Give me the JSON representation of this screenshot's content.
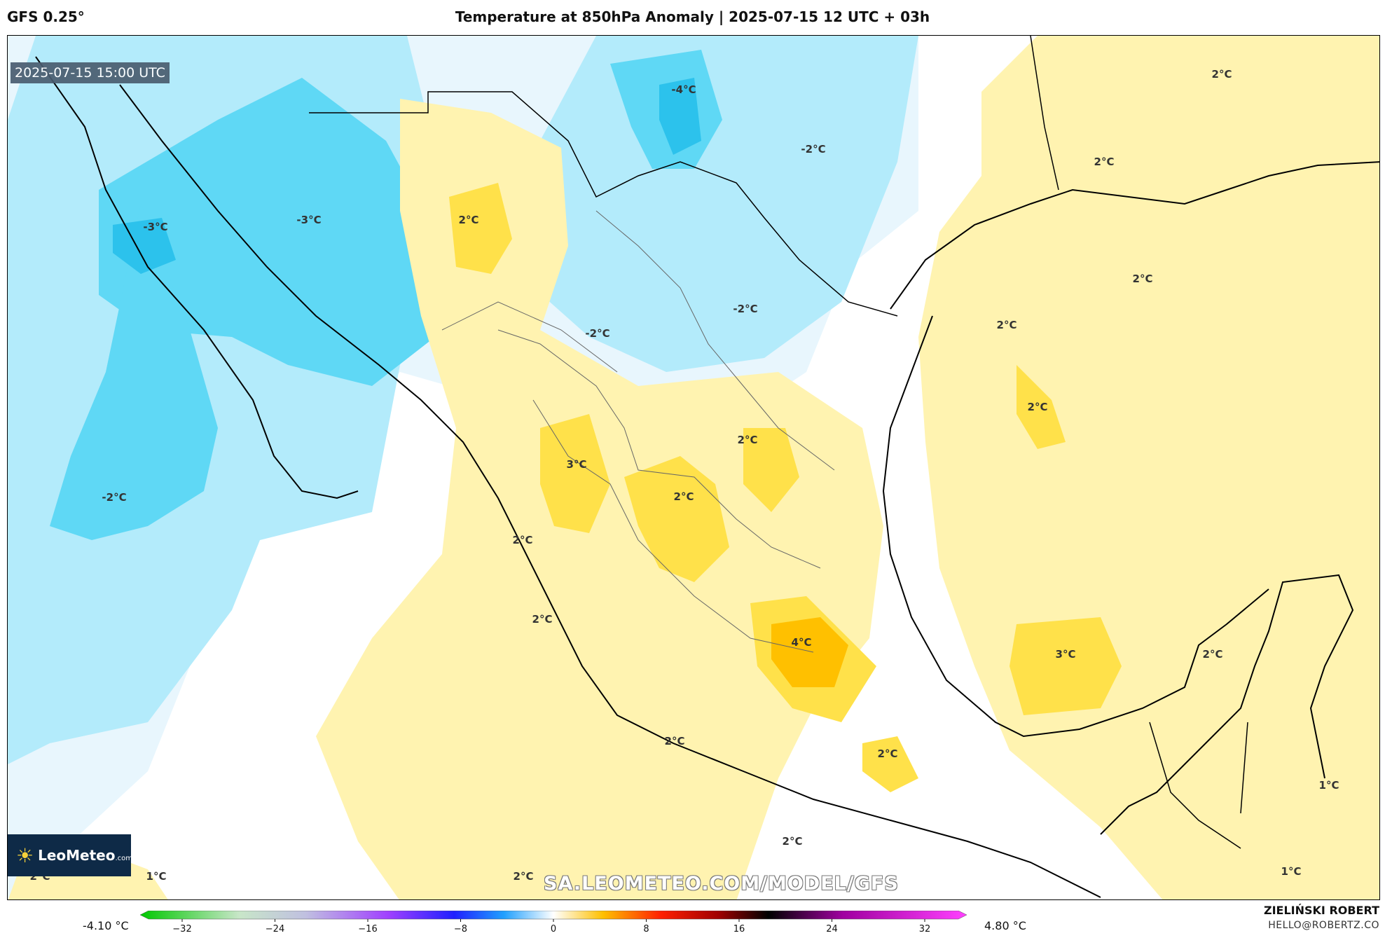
{
  "header": {
    "model": "GFS 0.25°",
    "title": "Temperature at 850hPa Anomaly | 2025-07-15 12 UTC + 03h"
  },
  "map": {
    "valid_time": "2025-07-15 15:00 UTC",
    "watermark": "SA.LEOMETEO.COM/MODEL/GFS",
    "logo": {
      "name": "LeoMeteo",
      "suffix": ".com"
    },
    "contour_labels": [
      "-4°C",
      "-2°C",
      "-3°C",
      "-3°C",
      "-2°C",
      "-2°C",
      "-2°C",
      "2°C",
      "2°C",
      "2°C",
      "2°C",
      "2°C",
      "3°C",
      "2°C",
      "2°C",
      "2°C",
      "2°C",
      "4°C",
      "3°C",
      "2°C",
      "2°C",
      "2°C",
      "1°C",
      "2°C",
      "1°C",
      "2°C",
      "2°C",
      "1°C",
      "2°C"
    ],
    "colors": {
      "cold_light": "#e8f6fd",
      "cold_mid": "#b3ebfb",
      "cold_strong": "#5fd8f5",
      "cold_core": "#2cc2ec",
      "warm_light": "#fff3b0",
      "warm_mid": "#ffe14a",
      "warm_strong": "#ffc000"
    }
  },
  "colorbar": {
    "min_label": "-4.10 °C",
    "max_label": "4.80 °C",
    "ticks": [
      "−32",
      "−24",
      "−16",
      "−8",
      "0",
      "8",
      "16",
      "24",
      "32"
    ],
    "range": [
      -32,
      32
    ]
  },
  "footer": {
    "author": "ZIELIŃSKI ROBERT",
    "email": "HELLO@ROBERTZ.CO"
  }
}
